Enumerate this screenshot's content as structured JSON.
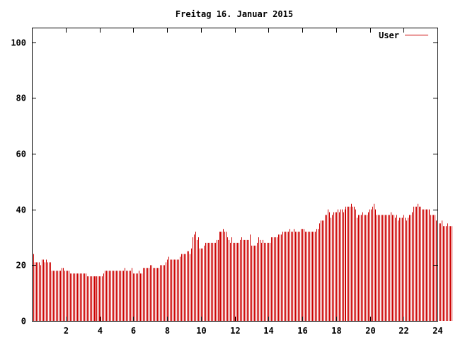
{
  "chart_data": {
    "type": "bar",
    "title": "Freitag 16. Januar 2015",
    "xlabel": "",
    "ylabel": "",
    "xlim": [
      0,
      24
    ],
    "ylim": [
      0,
      105
    ],
    "xticks": [
      2,
      4,
      6,
      8,
      10,
      12,
      14,
      16,
      18,
      20,
      22,
      24
    ],
    "yticks": [
      0,
      20,
      40,
      60,
      80,
      100
    ],
    "grid": false,
    "legend_position": "top-right",
    "bar_color": "#cc0000",
    "series": [
      {
        "name": "User",
        "x_start": 0,
        "x_step": 0.0833,
        "values": [
          25,
          24,
          21,
          21,
          21,
          21,
          20,
          22,
          22,
          21,
          22,
          21,
          21,
          21,
          18,
          18,
          18,
          18,
          18,
          18,
          18,
          19,
          19,
          18,
          18,
          18,
          18,
          17,
          17,
          17,
          17,
          17,
          17,
          17,
          17,
          17,
          17,
          17,
          17,
          16,
          16,
          16,
          16,
          16,
          16,
          16,
          16,
          16,
          16,
          16,
          16,
          17,
          18,
          18,
          18,
          18,
          18,
          18,
          18,
          18,
          18,
          18,
          18,
          18,
          18,
          18,
          19,
          18,
          18,
          18,
          18,
          19,
          17,
          17,
          17,
          17,
          18,
          17,
          17,
          19,
          19,
          19,
          19,
          19,
          20,
          20,
          19,
          19,
          19,
          19,
          19,
          20,
          20,
          20,
          20,
          21,
          22,
          23,
          22,
          22,
          22,
          22,
          22,
          22,
          22,
          23,
          24,
          24,
          24,
          24,
          25,
          25,
          24,
          26,
          30,
          31,
          32,
          29,
          30,
          26,
          26,
          26,
          27,
          28,
          28,
          28,
          28,
          28,
          28,
          28,
          28,
          29,
          29,
          32,
          32,
          32,
          33,
          32,
          32,
          30,
          29,
          28,
          30,
          28,
          28,
          28,
          28,
          28,
          29,
          30,
          29,
          29,
          29,
          29,
          29,
          31,
          27,
          27,
          27,
          27,
          28,
          30,
          29,
          28,
          29,
          28,
          28,
          28,
          28,
          28,
          30,
          30,
          30,
          30,
          30,
          31,
          31,
          31,
          32,
          32,
          32,
          32,
          32,
          33,
          32,
          32,
          33,
          32,
          32,
          32,
          32,
          33,
          33,
          33,
          32,
          32,
          32,
          32,
          32,
          32,
          32,
          32,
          33,
          33,
          35,
          36,
          36,
          36,
          38,
          38,
          40,
          39,
          37,
          38,
          39,
          39,
          39,
          40,
          39,
          40,
          40,
          39,
          40,
          41,
          41,
          41,
          41,
          42,
          41,
          41,
          40,
          37,
          38,
          38,
          38,
          39,
          38,
          38,
          38,
          39,
          40,
          40,
          41,
          42,
          40,
          38,
          38,
          38,
          38,
          38,
          38,
          38,
          38,
          38,
          38,
          39,
          38,
          38,
          37,
          38,
          36,
          37,
          37,
          37,
          38,
          37,
          36,
          37,
          38,
          38,
          39,
          41,
          41,
          41,
          42,
          41,
          41,
          40,
          40,
          40,
          40,
          40,
          40,
          38,
          38,
          38,
          38,
          36,
          36,
          35,
          35,
          36,
          34,
          34,
          34,
          35,
          34,
          34,
          34,
          34
        ]
      }
    ]
  }
}
